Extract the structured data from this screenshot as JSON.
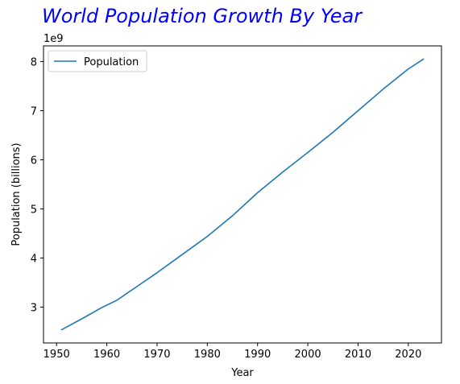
{
  "chart_data": {
    "type": "line",
    "title": "World Population Growth By Year",
    "title_color": "#0000ff",
    "xlabel": "Year",
    "ylabel": "Population (billions)",
    "offset_text": "1e9",
    "xlim": [
      1947.4,
      2026.6
    ],
    "ylim": [
      2270000000.0,
      8320000000.0
    ],
    "x_ticks": [
      1950,
      1960,
      1970,
      1980,
      1990,
      2000,
      2010,
      2020
    ],
    "x_tick_labels": [
      "1950",
      "1960",
      "1970",
      "1980",
      "1990",
      "2000",
      "2010",
      "2020"
    ],
    "y_ticks": [
      3000000000.0,
      4000000000.0,
      5000000000.0,
      6000000000.0,
      7000000000.0,
      8000000000.0
    ],
    "y_tick_labels": [
      "3",
      "4",
      "5",
      "6",
      "7",
      "8"
    ],
    "grid": false,
    "legend_position": "top-left",
    "series": [
      {
        "name": "Population",
        "color": "#1f77b4",
        "x": [
          1951,
          1955,
          1959,
          1962,
          1966,
          1970,
          1975,
          1980,
          1985,
          1990,
          1995,
          2000,
          2005,
          2010,
          2015,
          2020,
          2023
        ],
        "y": [
          2540000000.0,
          2760000000.0,
          2990000000.0,
          3140000000.0,
          3420000000.0,
          3700000000.0,
          4070000000.0,
          4440000000.0,
          4860000000.0,
          5330000000.0,
          5750000000.0,
          6150000000.0,
          6560000000.0,
          7000000000.0,
          7440000000.0,
          7850000000.0,
          8050000000.0
        ]
      }
    ]
  }
}
